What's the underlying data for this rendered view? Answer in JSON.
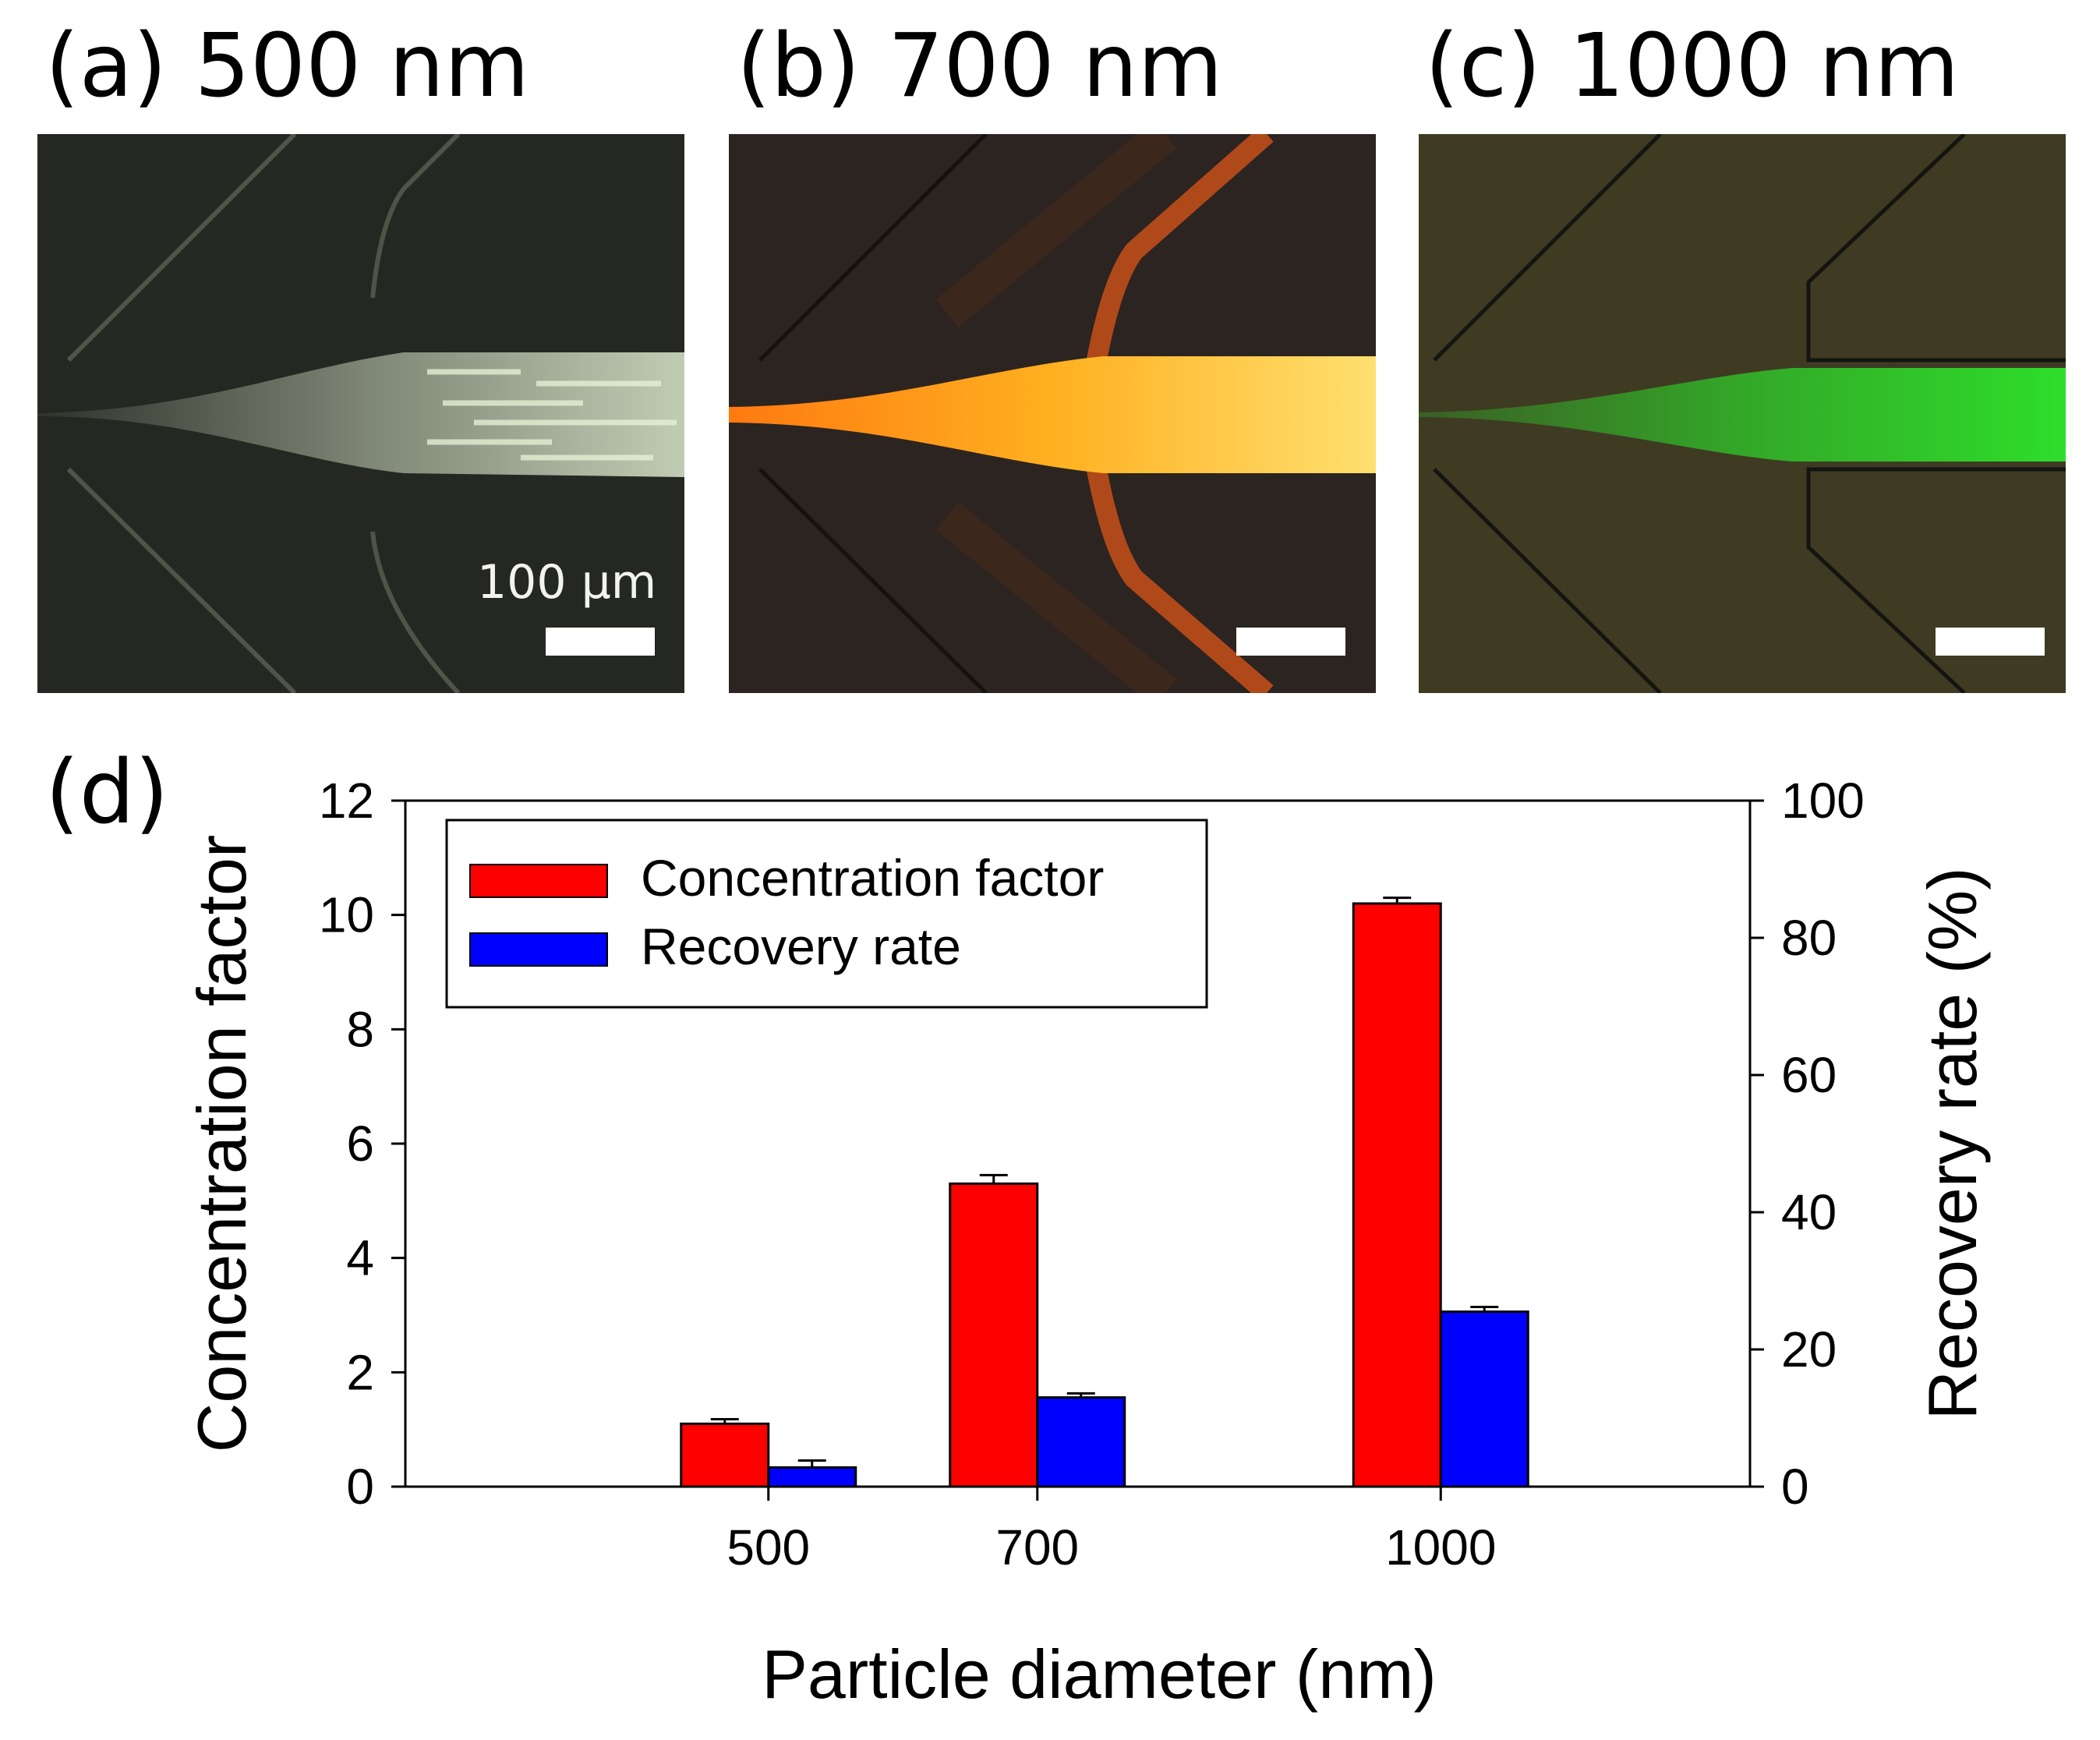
{
  "panels": [
    {
      "letter": "(a)",
      "title": "500 nm",
      "color": "#e8f5d8",
      "scale_bar_label": "100 µm"
    },
    {
      "letter": "(b)",
      "title": "700 nm",
      "color": "#ffb000"
    },
    {
      "letter": "(c)",
      "title": "1000 nm",
      "color": "#2cf02c"
    }
  ],
  "chart_letter": "(d)",
  "chart_data": {
    "type": "bar",
    "xlabel": "Particle diameter (nm)",
    "ylabel": "Concentration factor",
    "y2label": "Recovery rate (%)",
    "ylim": [
      0,
      12
    ],
    "y2lim": [
      0,
      100
    ],
    "yticks": [
      "0",
      "2",
      "4",
      "6",
      "8",
      "10",
      "12"
    ],
    "y2ticks": [
      "0",
      "20",
      "40",
      "60",
      "80",
      "100"
    ],
    "categories": [
      "500",
      "700",
      "1000"
    ],
    "category_values": [
      500,
      700,
      1000
    ],
    "xlim": [
      230,
      1230
    ],
    "series": [
      {
        "name": "Concentration factor",
        "axis": "left",
        "color": "#ff0000",
        "values": [
          1.1,
          5.3,
          10.2
        ],
        "errors": [
          0.08,
          0.15,
          0.1
        ]
      },
      {
        "name": "Recovery rate",
        "axis": "right",
        "color": "#0000ff",
        "values": [
          2.8,
          13.0,
          25.5
        ],
        "errors": [
          1.0,
          0.6,
          0.7
        ]
      }
    ],
    "legend": {
      "position": "top-left",
      "entries": [
        "Concentration factor",
        "Recovery rate"
      ]
    }
  }
}
